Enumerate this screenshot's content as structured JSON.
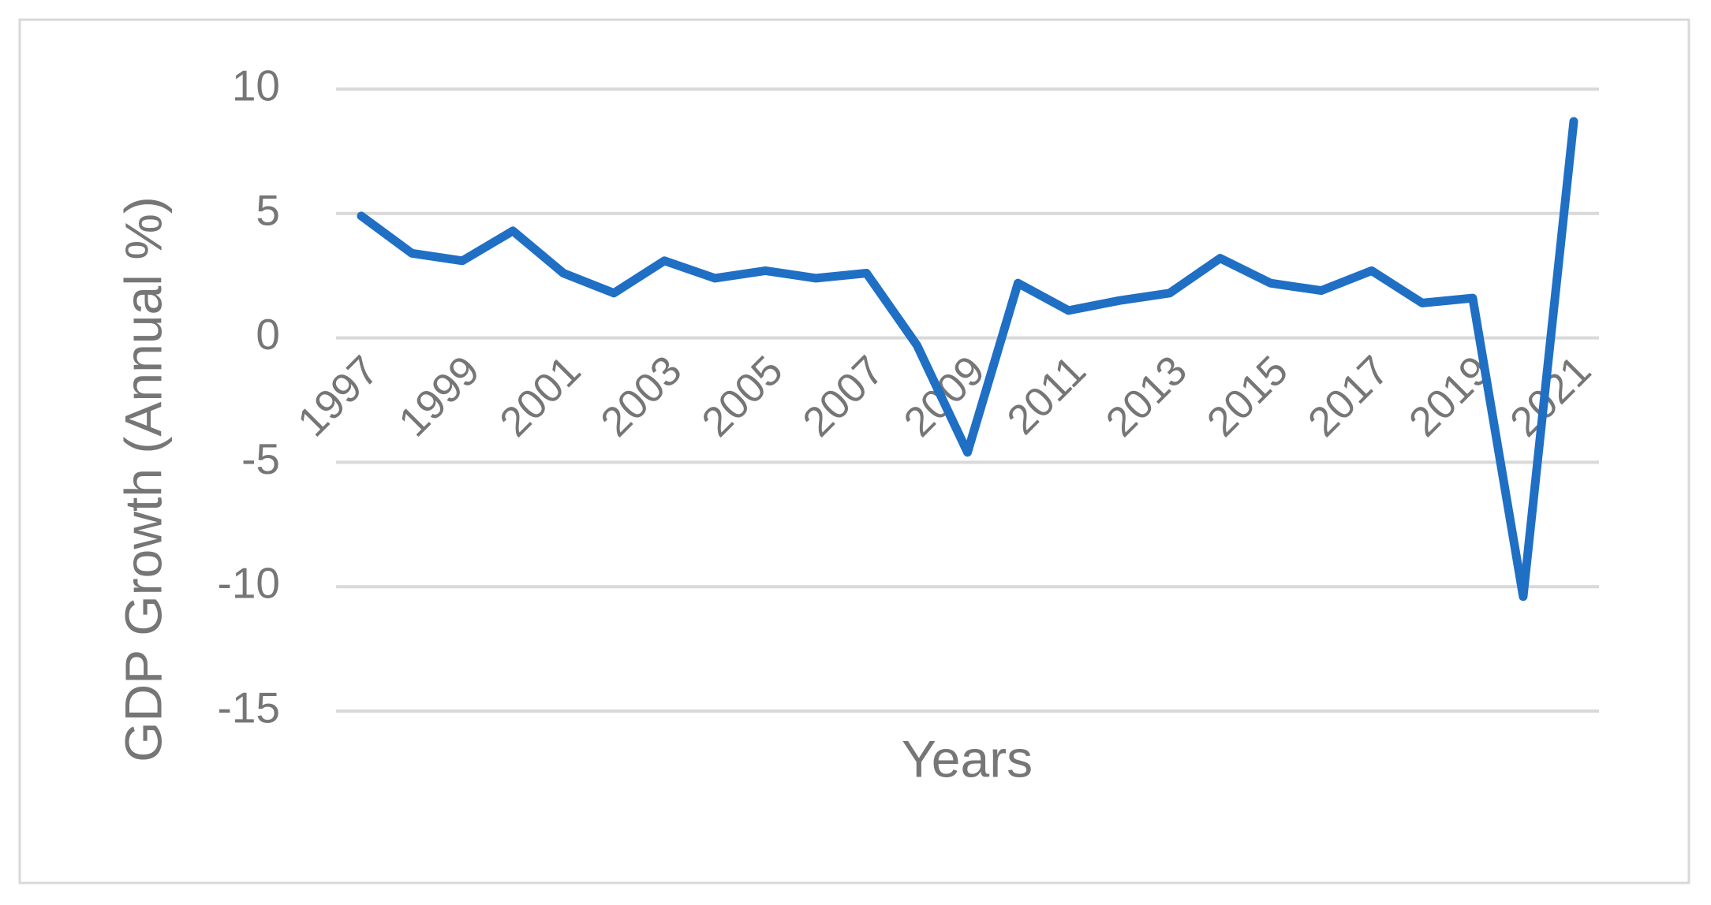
{
  "chart_data": {
    "type": "line",
    "x_label": "Years",
    "y_label": "GDP Growth (Annual %)",
    "categories": [
      "1997",
      null,
      "1999",
      null,
      "2001",
      null,
      "2003",
      null,
      "2005",
      null,
      "2007",
      null,
      "2009",
      null,
      "2011",
      null,
      "2013",
      null,
      "2015",
      null,
      "2017",
      null,
      "2019",
      null,
      "2021"
    ],
    "values": [
      4.9,
      3.4,
      3.1,
      4.3,
      2.6,
      1.8,
      3.1,
      2.4,
      2.7,
      2.4,
      2.6,
      -0.3,
      -4.6,
      2.2,
      1.1,
      1.5,
      1.8,
      3.2,
      2.2,
      1.9,
      2.7,
      1.4,
      1.6,
      -10.4,
      8.7
    ],
    "color": "#1f6fc5",
    "ylim": [
      -15,
      10
    ],
    "yticks": [
      -15,
      -10,
      -5,
      0,
      5,
      10
    ],
    "grid": true
  }
}
